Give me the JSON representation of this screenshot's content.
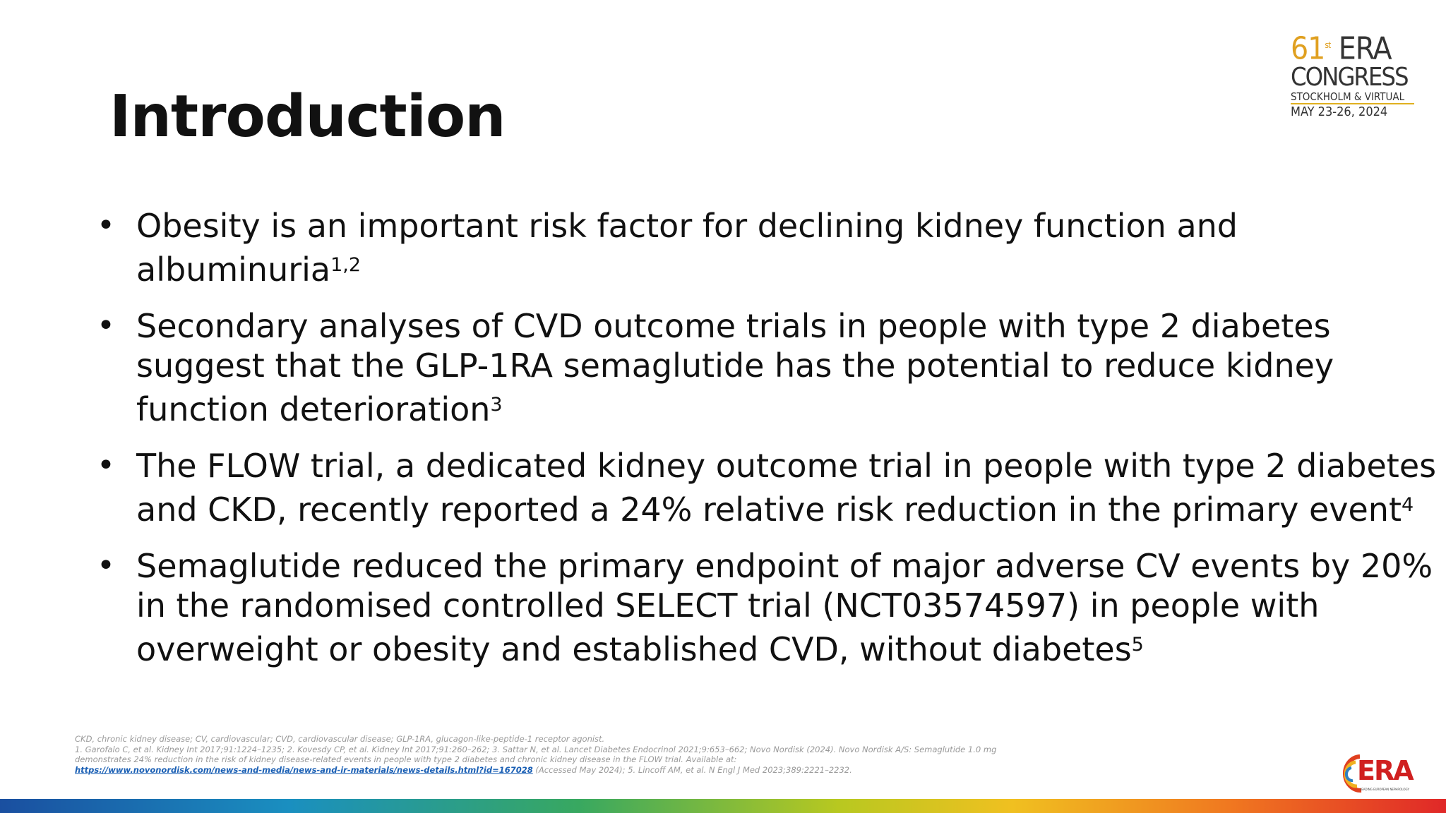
{
  "header": {
    "title": "Introduction"
  },
  "logo": {
    "edition": "61",
    "edition_suffix": "st",
    "name": "ERA",
    "line2": "CONGRESS",
    "line3": "STOCKHOLM & VIRTUAL",
    "line4": "MAY 23-26, 2024"
  },
  "bullets": [
    {
      "lines": [
        "Obesity is an important risk factor for declining kidney function and",
        "albuminuria"
      ],
      "sup": "1,2"
    },
    {
      "lines": [
        "Secondary analyses of CVD outcome trials in people with type 2 diabetes",
        "suggest that the GLP-1RA semaglutide has the potential to reduce kidney",
        "function deterioration"
      ],
      "sup": "3"
    },
    {
      "lines": [
        "The FLOW trial, a dedicated kidney outcome trial in people with type 2 diabetes",
        "and CKD, recently reported a 24% relative risk reduction in the primary event"
      ],
      "sup": "4"
    },
    {
      "lines": [
        "Semaglutide reduced the primary endpoint of major adverse CV events by 20%",
        "in the randomised controlled SELECT trial (NCT03574597) in people with",
        "overweight or obesity and established CVD, without diabetes"
      ],
      "sup": "5"
    }
  ],
  "footnotes": {
    "abbreviations": "CKD, chronic kidney disease; CV, cardiovascular; CVD, cardiovascular disease; GLP-1RA, glucagon-like-peptide-1 receptor agonist.",
    "refs_line1": "1. Garofalo C, et al. Kidney Int 2017;91:1224–1235; 2. Kovesdy CP, et al. Kidney Int 2017;91:260–262; 3. Sattar N, et al. Lancet Diabetes Endocrinol 2021;9:653–662; Novo Nordisk (2024). Novo Nordisk A/S: Semaglutide 1.0 mg",
    "refs_line2": "demonstrates 24% reduction in the risk of kidney disease-related events in people with type 2 diabetes and chronic kidney disease in the FLOW trial. Available at:",
    "link": "https://www.novonordisk.com/news-and-media/news-and-ir-materials/news-details.html?id=167028",
    "refs_line3": " (Accessed May 2024); 5. Lincoff AM, et al. N Engl J Med 2023;389:2221–2232."
  },
  "footer_logo": {
    "name": "ERA",
    "tagline": "LEADING EUROPEAN NEPHROLOGY"
  }
}
